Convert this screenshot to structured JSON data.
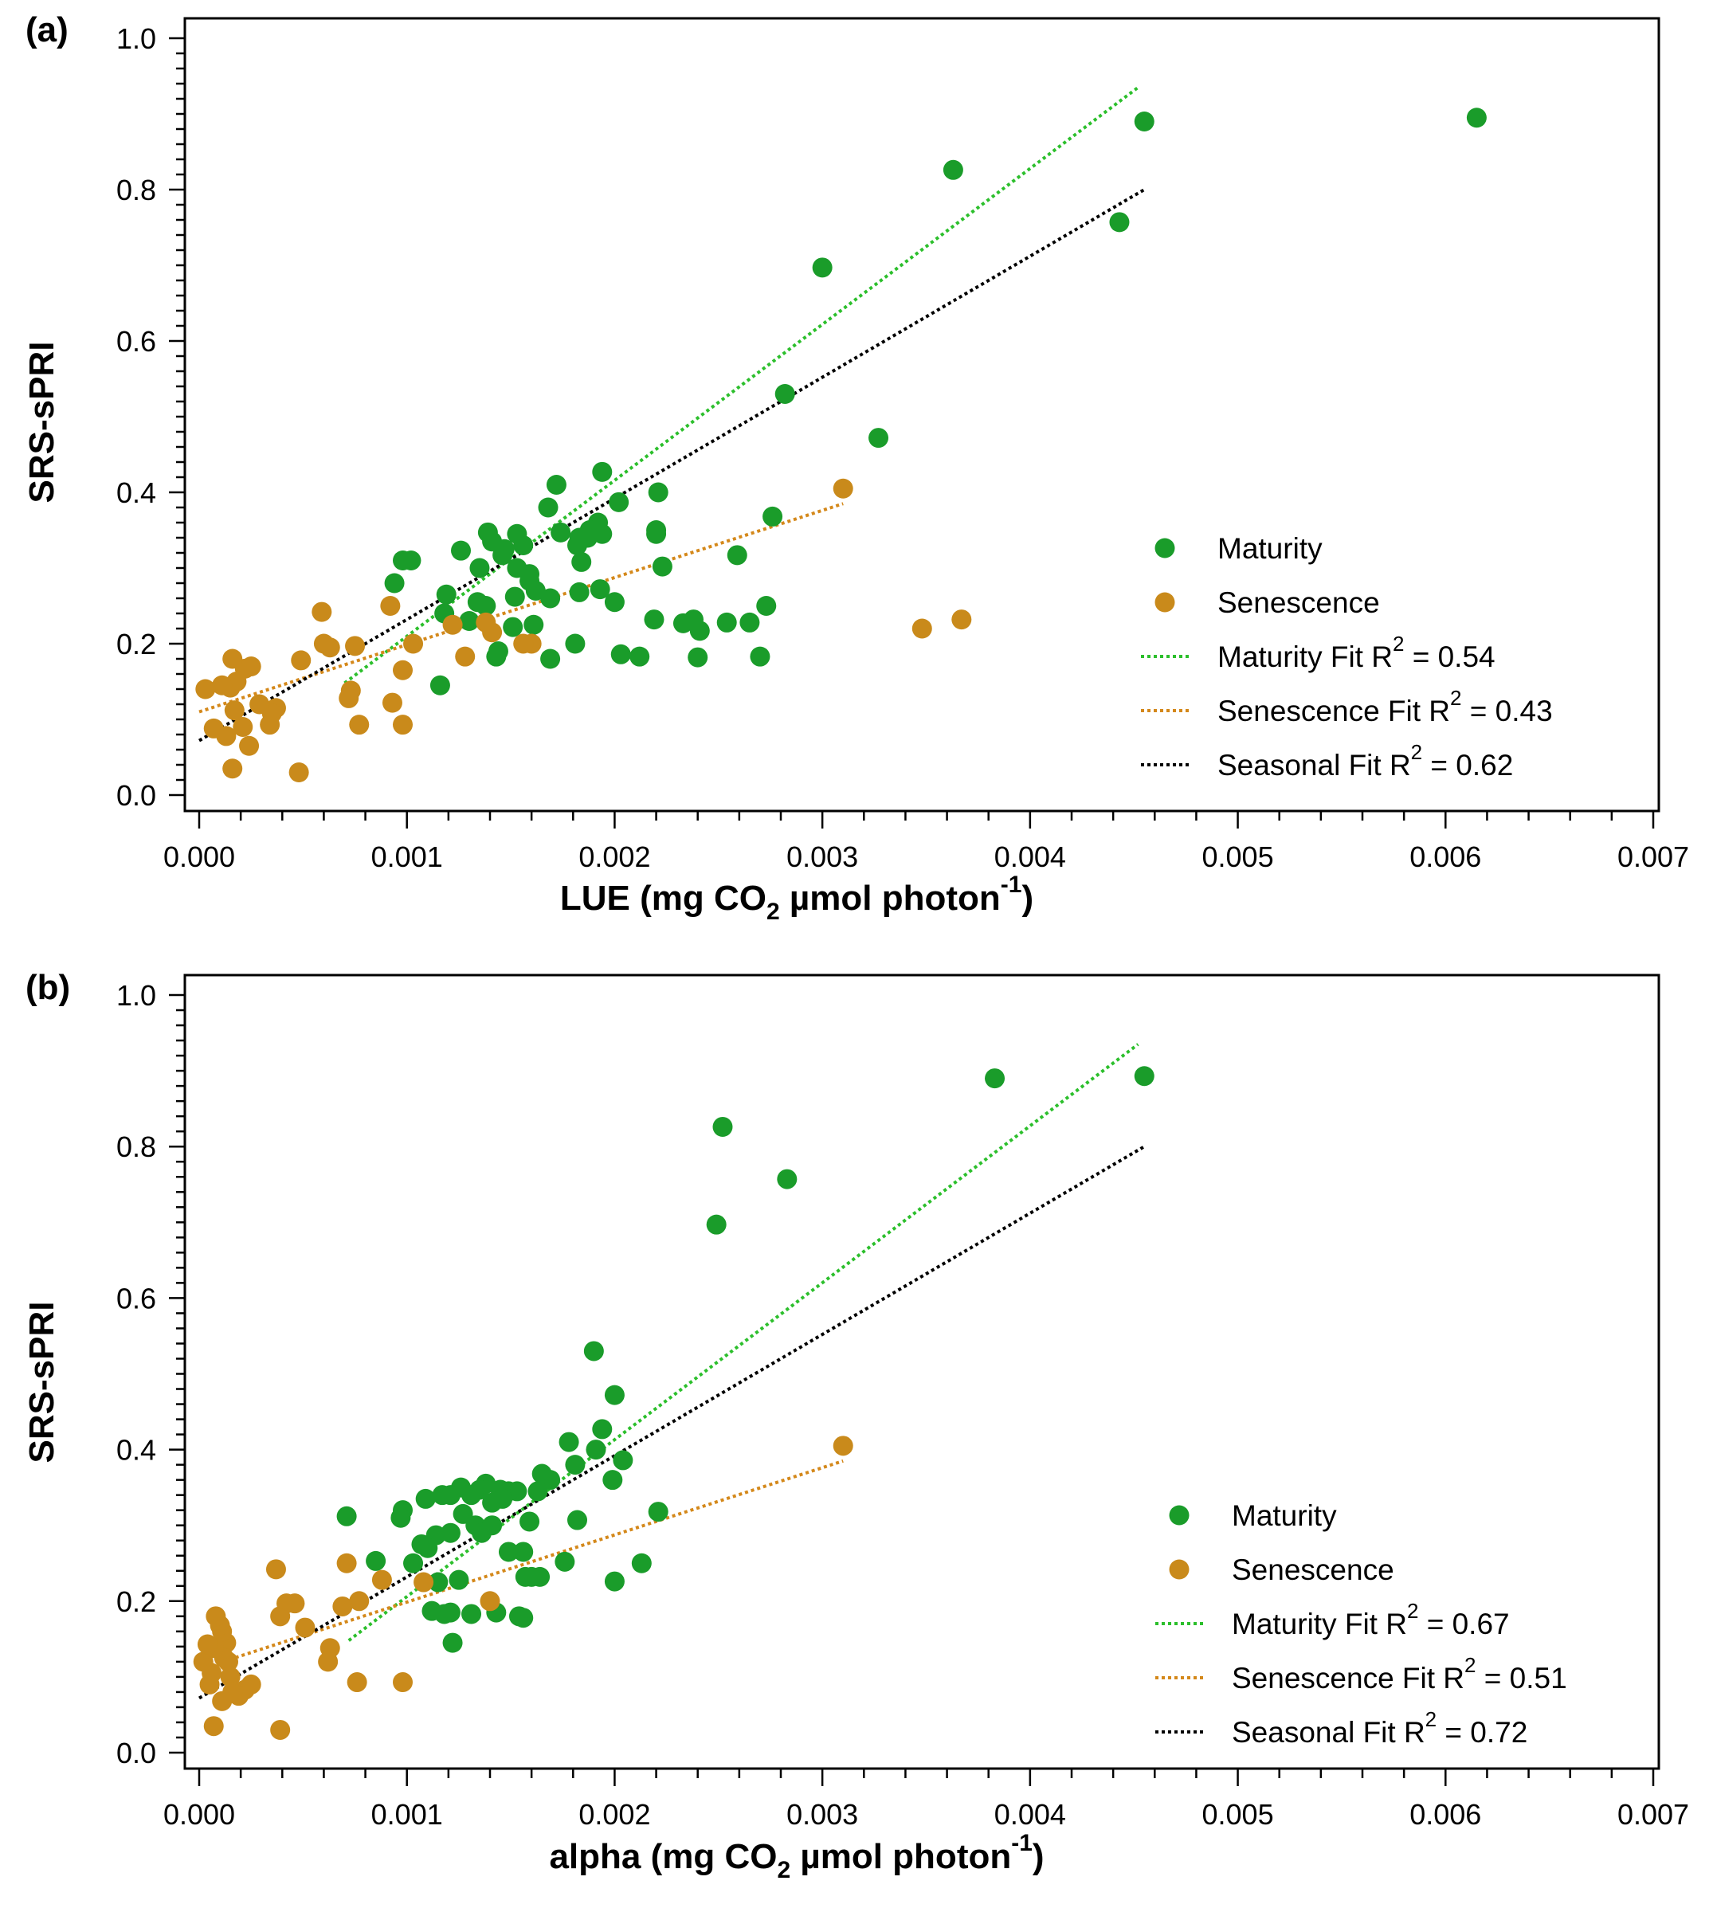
{
  "colors": {
    "maturity": "#1a9c2a",
    "senescence": "#c98a1b",
    "seasonal": "#000000",
    "maturity_fit": "#2cbf2c",
    "senescence_fit": "#d4881a"
  },
  "chart_data": [
    {
      "type": "scatter",
      "panel_label": "(a)",
      "xlabel_main": "LUE (mg CO",
      "xlabel_sub": "2",
      "xlabel_after": " µmol photon",
      "xlabel_sup": "-1",
      "xlabel_close": ")",
      "ylabel": "SRS-sPRI",
      "xlim": [
        0,
        0.007
      ],
      "ylim": [
        0,
        1.0
      ],
      "x_ticks": [
        0,
        0.001,
        0.002,
        0.003,
        0.004,
        0.005,
        0.006,
        0.007
      ],
      "x_tick_labels": [
        "0.000",
        "0.001",
        "0.002",
        "0.003",
        "0.004",
        "0.005",
        "0.006",
        "0.007"
      ],
      "y_ticks": [
        0,
        0.2,
        0.4,
        0.6,
        0.8,
        1.0
      ],
      "y_tick_labels": [
        "0.0",
        "0.2",
        "0.4",
        "0.6",
        "0.8",
        "1.0"
      ],
      "legend": {
        "position": "right",
        "entries": [
          {
            "label": "Maturity",
            "r2": ""
          },
          {
            "label": "Senescence",
            "r2": ""
          },
          {
            "label": "Maturity Fit",
            "r2": "= 0.54"
          },
          {
            "label": "Senescence Fit",
            "r2": "= 0.43"
          },
          {
            "label": "Seasonal Fit",
            "r2": "= 0.62"
          }
        ]
      },
      "series": [
        {
          "name": "Maturity",
          "points": [
            [
              0.00455,
              0.89
            ],
            [
              0.00615,
              0.895
            ],
            [
              0.00443,
              0.757
            ],
            [
              0.00363,
              0.826
            ],
            [
              0.003,
              0.697
            ],
            [
              0.00282,
              0.53
            ],
            [
              0.00327,
              0.472
            ],
            [
              0.00276,
              0.368
            ],
            [
              0.00259,
              0.317
            ],
            [
              0.00273,
              0.25
            ],
            [
              0.00265,
              0.228
            ],
            [
              0.0027,
              0.183
            ],
            [
              0.00254,
              0.228
            ],
            [
              0.00241,
              0.217
            ],
            [
              0.0024,
              0.182
            ],
            [
              0.00238,
              0.232
            ],
            [
              0.00233,
              0.227
            ],
            [
              0.00223,
              0.302
            ],
            [
              0.00221,
              0.4
            ],
            [
              0.0022,
              0.35
            ],
            [
              0.0022,
              0.345
            ],
            [
              0.00219,
              0.232
            ],
            [
              0.00212,
              0.183
            ],
            [
              0.00203,
              0.186
            ],
            [
              0.002,
              0.255
            ],
            [
              0.00202,
              0.387
            ],
            [
              0.00194,
              0.427
            ],
            [
              0.00194,
              0.345
            ],
            [
              0.00193,
              0.272
            ],
            [
              0.00192,
              0.36
            ],
            [
              0.00188,
              0.35
            ],
            [
              0.00187,
              0.34
            ],
            [
              0.00183,
              0.34
            ],
            [
              0.00182,
              0.33
            ],
            [
              0.00184,
              0.308
            ],
            [
              0.00183,
              0.268
            ],
            [
              0.00181,
              0.2
            ],
            [
              0.00172,
              0.41
            ],
            [
              0.00168,
              0.38
            ],
            [
              0.00174,
              0.347
            ],
            [
              0.00169,
              0.26
            ],
            [
              0.00169,
              0.18
            ],
            [
              0.00162,
              0.27
            ],
            [
              0.00161,
              0.225
            ],
            [
              0.00159,
              0.283
            ],
            [
              0.00159,
              0.292
            ],
            [
              0.00156,
              0.33
            ],
            [
              0.00153,
              0.345
            ],
            [
              0.00153,
              0.3
            ],
            [
              0.00152,
              0.262
            ],
            [
              0.00151,
              0.222
            ],
            [
              0.00146,
              0.317
            ],
            [
              0.00147,
              0.325
            ],
            [
              0.00144,
              0.19
            ],
            [
              0.00143,
              0.183
            ],
            [
              0.00141,
              0.335
            ],
            [
              0.00139,
              0.347
            ],
            [
              0.00138,
              0.25
            ],
            [
              0.00135,
              0.3
            ],
            [
              0.00134,
              0.255
            ],
            [
              0.0013,
              0.23
            ],
            [
              0.00126,
              0.323
            ],
            [
              0.00119,
              0.265
            ],
            [
              0.00118,
              0.24
            ],
            [
              0.00116,
              0.145
            ],
            [
              0.00102,
              0.31
            ],
            [
              0.00098,
              0.31
            ],
            [
              0.00094,
              0.28
            ]
          ]
        },
        {
          "name": "Senescence",
          "points": [
            [
              0.0031,
              0.405
            ],
            [
              0.00367,
              0.232
            ],
            [
              0.00348,
              0.22
            ],
            [
              0.0016,
              0.2
            ],
            [
              0.00156,
              0.2
            ],
            [
              0.00141,
              0.215
            ],
            [
              0.00138,
              0.228
            ],
            [
              0.00122,
              0.225
            ],
            [
              0.00128,
              0.183
            ],
            [
              0.00103,
              0.2
            ],
            [
              0.00098,
              0.165
            ],
            [
              0.00098,
              0.093
            ],
            [
              0.00092,
              0.25
            ],
            [
              0.00093,
              0.122
            ],
            [
              0.00077,
              0.093
            ],
            [
              0.00075,
              0.197
            ],
            [
              0.00073,
              0.138
            ],
            [
              0.00072,
              0.128
            ],
            [
              0.00063,
              0.195
            ],
            [
              0.0006,
              0.2
            ],
            [
              0.00059,
              0.242
            ],
            [
              0.00049,
              0.178
            ],
            [
              0.00048,
              0.03
            ],
            [
              0.00037,
              0.115
            ],
            [
              0.00035,
              0.108
            ],
            [
              0.00034,
              0.093
            ],
            [
              0.00029,
              0.12
            ],
            [
              0.00025,
              0.17
            ],
            [
              0.00024,
              0.065
            ],
            [
              0.00022,
              0.167
            ],
            [
              0.00021,
              0.09
            ],
            [
              0.00018,
              0.15
            ],
            [
              0.00017,
              0.112
            ],
            [
              0.00016,
              0.18
            ],
            [
              0.00016,
              0.035
            ],
            [
              0.00015,
              0.142
            ],
            [
              0.00013,
              0.078
            ],
            [
              0.00011,
              0.145
            ],
            [
              7e-05,
              0.088
            ],
            [
              3e-05,
              0.14
            ]
          ]
        }
      ],
      "fits": [
        {
          "name": "Maturity Fit",
          "x": [
            0.0007,
            0.00452
          ],
          "y": [
            0.148,
            0.935
          ]
        },
        {
          "name": "Senescence Fit",
          "x": [
            0,
            0.0031
          ],
          "y": [
            0.11,
            0.385
          ]
        },
        {
          "name": "Seasonal Fit",
          "x": [
            0,
            0.00455
          ],
          "y": [
            0.072,
            0.8
          ]
        }
      ]
    },
    {
      "type": "scatter",
      "panel_label": "(b)",
      "xlabel_main": "alpha (mg CO",
      "xlabel_sub": "2",
      "xlabel_after": " µmol photon",
      "xlabel_sup": "-1",
      "xlabel_close": ")",
      "ylabel": "SRS-sPRI",
      "xlim": [
        0,
        0.007
      ],
      "ylim": [
        0,
        1.0
      ],
      "x_ticks": [
        0,
        0.001,
        0.002,
        0.003,
        0.004,
        0.005,
        0.006,
        0.007
      ],
      "x_tick_labels": [
        "0.000",
        "0.001",
        "0.002",
        "0.003",
        "0.004",
        "0.005",
        "0.006",
        "0.007"
      ],
      "y_ticks": [
        0,
        0.2,
        0.4,
        0.6,
        0.8,
        1.0
      ],
      "y_tick_labels": [
        "0.0",
        "0.2",
        "0.4",
        "0.6",
        "0.8",
        "1.0"
      ],
      "legend": {
        "position": "right",
        "entries": [
          {
            "label": "Maturity",
            "r2": ""
          },
          {
            "label": "Senescence",
            "r2": ""
          },
          {
            "label": "Maturity Fit",
            "r2": "= 0.67"
          },
          {
            "label": "Senescence Fit",
            "r2": "= 0.51"
          },
          {
            "label": "Seasonal Fit",
            "r2": "= 0.72"
          }
        ]
      },
      "series": [
        {
          "name": "Maturity",
          "points": [
            [
              0.00455,
              0.893
            ],
            [
              0.00383,
              0.89
            ],
            [
              0.00252,
              0.826
            ],
            [
              0.00283,
              0.757
            ],
            [
              0.00249,
              0.697
            ],
            [
              0.0019,
              0.53
            ],
            [
              0.002,
              0.472
            ],
            [
              0.00194,
              0.427
            ],
            [
              0.00178,
              0.41
            ],
            [
              0.00191,
              0.4
            ],
            [
              0.00204,
              0.386
            ],
            [
              0.00181,
              0.38
            ],
            [
              0.00169,
              0.36
            ],
            [
              0.00165,
              0.368
            ],
            [
              0.00199,
              0.36
            ],
            [
              0.00221,
              0.318
            ],
            [
              0.00163,
              0.345
            ],
            [
              0.00182,
              0.307
            ],
            [
              0.00159,
              0.305
            ],
            [
              0.00153,
              0.345
            ],
            [
              0.00149,
              0.345
            ],
            [
              0.00145,
              0.347
            ],
            [
              0.00146,
              0.335
            ],
            [
              0.00141,
              0.33
            ],
            [
              0.00138,
              0.355
            ],
            [
              0.00135,
              0.347
            ],
            [
              0.00133,
              0.3
            ],
            [
              0.00131,
              0.34
            ],
            [
              0.00126,
              0.35
            ],
            [
              0.00121,
              0.34
            ],
            [
              0.00117,
              0.34
            ],
            [
              0.00109,
              0.335
            ],
            [
              0.00098,
              0.32
            ],
            [
              0.00097,
              0.31
            ],
            [
              0.00071,
              0.312
            ],
            [
              0.00085,
              0.253
            ],
            [
              0.00127,
              0.315
            ],
            [
              0.00121,
              0.29
            ],
            [
              0.00114,
              0.287
            ],
            [
              0.00136,
              0.29
            ],
            [
              0.00141,
              0.3
            ],
            [
              0.00149,
              0.265
            ],
            [
              0.00156,
              0.265
            ],
            [
              0.00157,
              0.232
            ],
            [
              0.0016,
              0.232
            ],
            [
              0.00164,
              0.232
            ],
            [
              0.00176,
              0.252
            ],
            [
              0.00213,
              0.25
            ],
            [
              0.002,
              0.226
            ],
            [
              0.00115,
              0.225
            ],
            [
              0.00125,
              0.228
            ],
            [
              0.00121,
              0.185
            ],
            [
              0.00112,
              0.187
            ],
            [
              0.00118,
              0.183
            ],
            [
              0.00131,
              0.183
            ],
            [
              0.00143,
              0.185
            ],
            [
              0.00154,
              0.18
            ],
            [
              0.00156,
              0.178
            ],
            [
              0.00122,
              0.145
            ],
            [
              0.00103,
              0.25
            ],
            [
              0.00107,
              0.275
            ],
            [
              0.0011,
              0.27
            ]
          ]
        },
        {
          "name": "Senescence",
          "points": [
            [
              0.0031,
              0.405
            ],
            [
              0.0014,
              0.2
            ],
            [
              0.00108,
              0.225
            ],
            [
              0.00088,
              0.228
            ],
            [
              0.00077,
              0.2
            ],
            [
              0.00071,
              0.25
            ],
            [
              0.00069,
              0.193
            ],
            [
              0.00063,
              0.138
            ],
            [
              0.00062,
              0.12
            ],
            [
              0.00051,
              0.165
            ],
            [
              0.00046,
              0.197
            ],
            [
              0.00042,
              0.197
            ],
            [
              0.00039,
              0.18
            ],
            [
              0.00037,
              0.242
            ],
            [
              0.00039,
              0.03
            ],
            [
              0.00076,
              0.093
            ],
            [
              0.00098,
              0.093
            ],
            [
              0.00025,
              0.09
            ],
            [
              0.00022,
              0.083
            ],
            [
              0.00019,
              0.075
            ],
            [
              0.00015,
              0.1
            ],
            [
              0.00014,
              0.12
            ],
            [
              0.00013,
              0.145
            ],
            [
              0.00012,
              0.125
            ],
            [
              0.00011,
              0.16
            ],
            [
              0.0001,
              0.168
            ],
            [
              8e-05,
              0.18
            ],
            [
              7e-05,
              0.138
            ],
            [
              6e-05,
              0.105
            ],
            [
              5e-05,
              0.09
            ],
            [
              2e-05,
              0.12
            ],
            [
              4e-05,
              0.143
            ],
            [
              7e-05,
              0.035
            ],
            [
              0.00011,
              0.068
            ],
            [
              0.00016,
              0.08
            ]
          ]
        }
      ],
      "fits": [
        {
          "name": "Maturity Fit",
          "x": [
            0.00072,
            0.00452
          ],
          "y": [
            0.148,
            0.935
          ]
        },
        {
          "name": "Senescence Fit",
          "x": [
            0,
            0.0031
          ],
          "y": [
            0.11,
            0.385
          ]
        },
        {
          "name": "Seasonal Fit",
          "x": [
            0,
            0.00455
          ],
          "y": [
            0.072,
            0.8
          ]
        }
      ]
    }
  ]
}
